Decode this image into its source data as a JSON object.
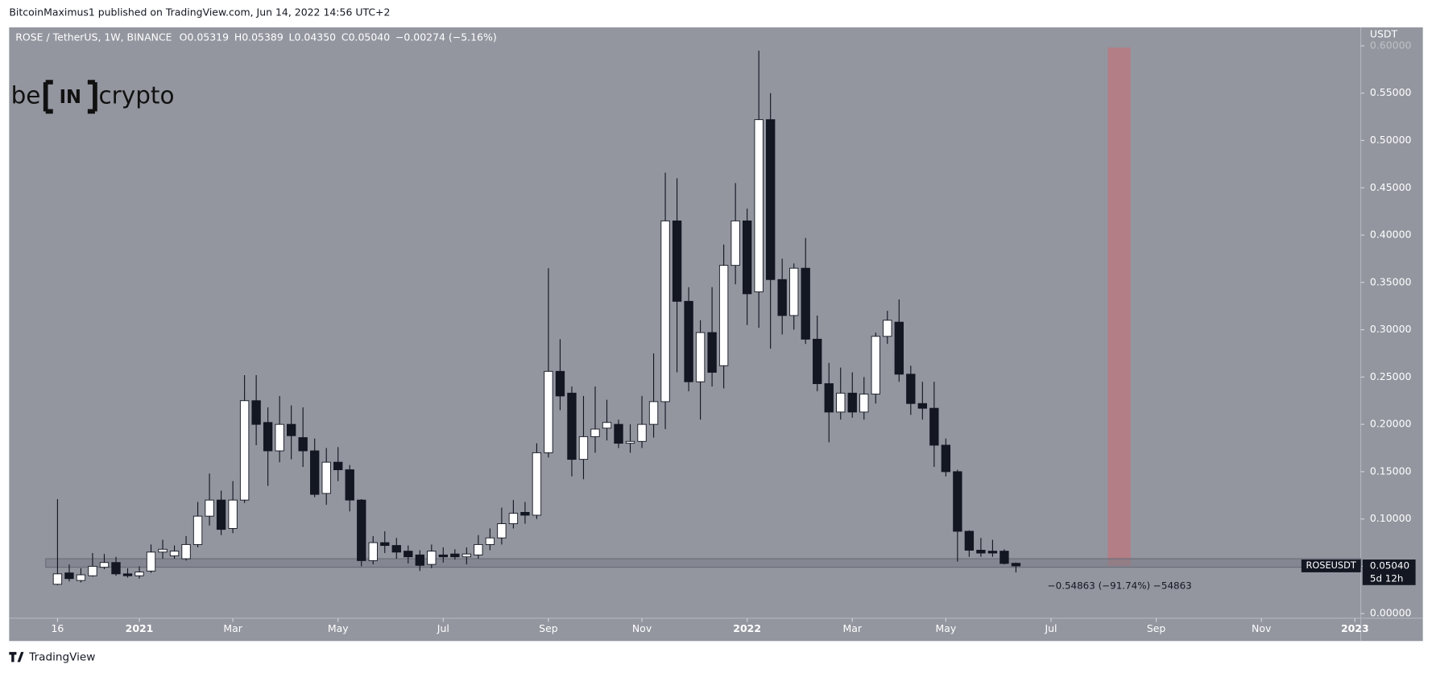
{
  "header": "BitcoinMaximus1 published on TradingView.com, Jun 14, 2022 14:56 UTC+2",
  "footer": "TradingView",
  "logo": {
    "left": "be",
    "mid": "IN",
    "right": "crypto"
  },
  "chart_data": {
    "type": "candlestick",
    "title": "ROSE / TetherUS, 1W, BINANCE",
    "ohlc_prefixes": [
      "O",
      "H",
      "L",
      "C"
    ],
    "ohlc_labels": [
      "0.05319",
      "0.05389",
      "0.04350",
      "0.05040"
    ],
    "change_label": "−0.00274 (−5.16%)",
    "y_unit": "USDT",
    "price_tag": {
      "symbol": "ROSEUSDT",
      "countdown": "5d 12h"
    },
    "annotation": "−0.54863 (−91.74%) −54863",
    "up_color": "#ffffff",
    "down_color": "#131722",
    "grid": false,
    "support_zone": [
      0.049,
      0.058
    ],
    "series": [
      {
        "name": "ROSEUSDT",
        "open": [
          0.031,
          0.043,
          0.035,
          0.04,
          0.049,
          0.054,
          0.042,
          0.04,
          0.045,
          0.065,
          0.061,
          0.058,
          0.073,
          0.103,
          0.12,
          0.09,
          0.12,
          0.225,
          0.202,
          0.172,
          0.2,
          0.186,
          0.172,
          0.127,
          0.16,
          0.152,
          0.12,
          0.056,
          0.075,
          0.072,
          0.066,
          0.062,
          0.052,
          0.062,
          0.063,
          0.06,
          0.062,
          0.073,
          0.08,
          0.095,
          0.107,
          0.104,
          0.17,
          0.256,
          0.233,
          0.163,
          0.187,
          0.196,
          0.2,
          0.18,
          0.182,
          0.2,
          0.224,
          0.415,
          0.33,
          0.245,
          0.297,
          0.262,
          0.368,
          0.415,
          0.34,
          0.522,
          0.353,
          0.315,
          0.365,
          0.29,
          0.243,
          0.213,
          0.233,
          0.213,
          0.232,
          0.293,
          0.308,
          0.253,
          0.222,
          0.217,
          0.178,
          0.15,
          0.087,
          0.067,
          0.066,
          0.066,
          0.05319
        ],
        "high": [
          0.121,
          0.052,
          0.048,
          0.064,
          0.063,
          0.06,
          0.048,
          0.05,
          0.073,
          0.078,
          0.072,
          0.082,
          0.118,
          0.148,
          0.13,
          0.14,
          0.252,
          0.252,
          0.218,
          0.23,
          0.22,
          0.218,
          0.185,
          0.175,
          0.176,
          0.157,
          0.121,
          0.082,
          0.087,
          0.08,
          0.072,
          0.067,
          0.073,
          0.07,
          0.068,
          0.07,
          0.083,
          0.09,
          0.112,
          0.12,
          0.118,
          0.18,
          0.365,
          0.29,
          0.24,
          0.23,
          0.24,
          0.226,
          0.205,
          0.2,
          0.23,
          0.275,
          0.466,
          0.46,
          0.345,
          0.31,
          0.345,
          0.39,
          0.455,
          0.428,
          0.595,
          0.55,
          0.375,
          0.37,
          0.397,
          0.315,
          0.265,
          0.26,
          0.255,
          0.25,
          0.297,
          0.32,
          0.332,
          0.262,
          0.245,
          0.245,
          0.185,
          0.152,
          0.088,
          0.08,
          0.078,
          0.068,
          0.05389
        ],
        "low": [
          0.03,
          0.034,
          0.033,
          0.039,
          0.047,
          0.04,
          0.038,
          0.037,
          0.043,
          0.058,
          0.058,
          0.056,
          0.07,
          0.093,
          0.083,
          0.085,
          0.117,
          0.178,
          0.135,
          0.16,
          0.163,
          0.155,
          0.123,
          0.115,
          0.14,
          0.108,
          0.05,
          0.052,
          0.064,
          0.058,
          0.053,
          0.045,
          0.048,
          0.054,
          0.057,
          0.052,
          0.058,
          0.067,
          0.073,
          0.09,
          0.095,
          0.1,
          0.165,
          0.215,
          0.145,
          0.142,
          0.17,
          0.183,
          0.175,
          0.17,
          0.175,
          0.186,
          0.195,
          0.255,
          0.235,
          0.205,
          0.24,
          0.238,
          0.348,
          0.305,
          0.302,
          0.28,
          0.295,
          0.3,
          0.285,
          0.235,
          0.181,
          0.205,
          0.207,
          0.205,
          0.222,
          0.285,
          0.245,
          0.21,
          0.205,
          0.155,
          0.145,
          0.055,
          0.06,
          0.06,
          0.06,
          0.052,
          0.0435
        ],
        "close": [
          0.042,
          0.037,
          0.041,
          0.05,
          0.054,
          0.042,
          0.04,
          0.044,
          0.065,
          0.068,
          0.066,
          0.073,
          0.103,
          0.12,
          0.089,
          0.12,
          0.225,
          0.2,
          0.172,
          0.2,
          0.188,
          0.172,
          0.126,
          0.16,
          0.152,
          0.12,
          0.056,
          0.075,
          0.072,
          0.065,
          0.06,
          0.051,
          0.066,
          0.06,
          0.06,
          0.063,
          0.073,
          0.08,
          0.095,
          0.106,
          0.104,
          0.17,
          0.256,
          0.23,
          0.163,
          0.187,
          0.195,
          0.202,
          0.18,
          0.182,
          0.2,
          0.224,
          0.415,
          0.33,
          0.245,
          0.297,
          0.255,
          0.368,
          0.415,
          0.338,
          0.522,
          0.353,
          0.315,
          0.365,
          0.29,
          0.243,
          0.213,
          0.233,
          0.213,
          0.232,
          0.293,
          0.31,
          0.253,
          0.222,
          0.217,
          0.178,
          0.15,
          0.087,
          0.067,
          0.064,
          0.064,
          0.053,
          0.0504
        ]
      }
    ],
    "xlim": [
      -4.14,
      111.5
    ],
    "xticks": [
      {
        "value": 0,
        "label": "16"
      },
      {
        "value": 7,
        "label": "2021"
      },
      {
        "value": 15,
        "label": "Mar"
      },
      {
        "value": 24,
        "label": "May"
      },
      {
        "value": 33,
        "label": "Jul"
      },
      {
        "value": 42,
        "label": "Sep"
      },
      {
        "value": 50,
        "label": "Nov"
      },
      {
        "value": 59,
        "label": "2022"
      },
      {
        "value": 68,
        "label": "Mar"
      },
      {
        "value": 76,
        "label": "May"
      },
      {
        "value": 85,
        "label": "Jul"
      },
      {
        "value": 94,
        "label": "Sep"
      },
      {
        "value": 103,
        "label": "Nov"
      },
      {
        "value": 111,
        "label": "2023"
      }
    ],
    "ylim": [
      -0.0039,
      0.6195
    ],
    "yticks": [
      {
        "value": 0,
        "label": "0.00000"
      },
      {
        "value": 0.05,
        "label": "0.05000"
      },
      {
        "value": 0.1,
        "label": "0.10000"
      },
      {
        "value": 0.15,
        "label": "0.15000"
      },
      {
        "value": 0.2,
        "label": "0.20000"
      },
      {
        "value": 0.25,
        "label": "0.25000"
      },
      {
        "value": 0.3,
        "label": "0.30000"
      },
      {
        "value": 0.35,
        "label": "0.35000"
      },
      {
        "value": 0.4,
        "label": "0.40000"
      },
      {
        "value": 0.45,
        "label": "0.45000"
      },
      {
        "value": 0.5,
        "label": "0.50000"
      },
      {
        "value": 0.55,
        "label": "0.55000"
      },
      {
        "value": 0.6,
        "label": "0.60000"
      }
    ]
  }
}
